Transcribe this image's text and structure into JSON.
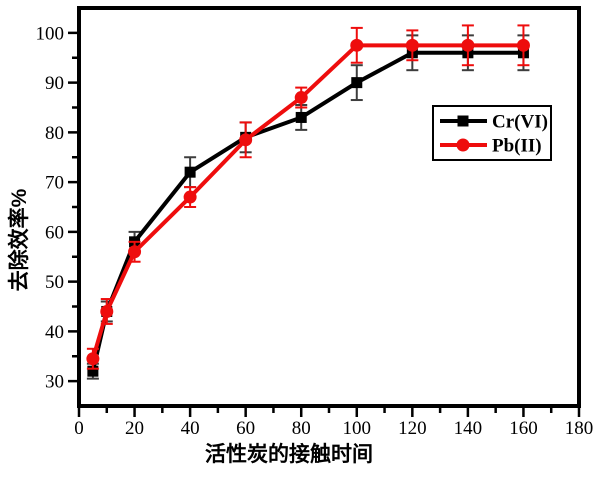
{
  "chart_data": {
    "type": "line",
    "title": "",
    "xlabel": "活性炭的接触时间",
    "ylabel": "去除效率%",
    "xlim": [
      0,
      180
    ],
    "ylim": [
      25,
      105
    ],
    "x_major_ticks": [
      0,
      20,
      40,
      60,
      80,
      100,
      120,
      140,
      160,
      180
    ],
    "x_minor_step": 10,
    "y_major_ticks": [
      30,
      40,
      50,
      60,
      70,
      80,
      90,
      100
    ],
    "y_minor_step": 5,
    "grid": false,
    "legend_position": "right-middle",
    "x": [
      5,
      10,
      20,
      40,
      60,
      80,
      100,
      120,
      140,
      160
    ],
    "series": [
      {
        "name": "Cr(VI)",
        "color": "#000000",
        "error_color": "#3d3d3d",
        "marker": "square",
        "values": [
          32,
          44,
          58,
          72,
          79,
          83,
          90,
          96,
          96,
          96
        ],
        "errors": [
          1.5,
          2,
          2,
          3,
          3,
          2.5,
          3.5,
          3.5,
          3.5,
          3.5
        ]
      },
      {
        "name": "Pb(II)",
        "color": "#ee0d0d",
        "marker": "circle",
        "values": [
          34.5,
          44,
          56,
          67,
          78.5,
          87,
          97.5,
          97.5,
          97.5,
          97.5
        ],
        "errors": [
          2,
          2.5,
          2,
          2,
          3.5,
          2,
          3.5,
          3,
          4,
          4
        ]
      }
    ]
  },
  "colors": {
    "background": "#ffffff",
    "axis": "#000000",
    "cr_series": "#000000",
    "pb_series": "#ee0d0d"
  }
}
